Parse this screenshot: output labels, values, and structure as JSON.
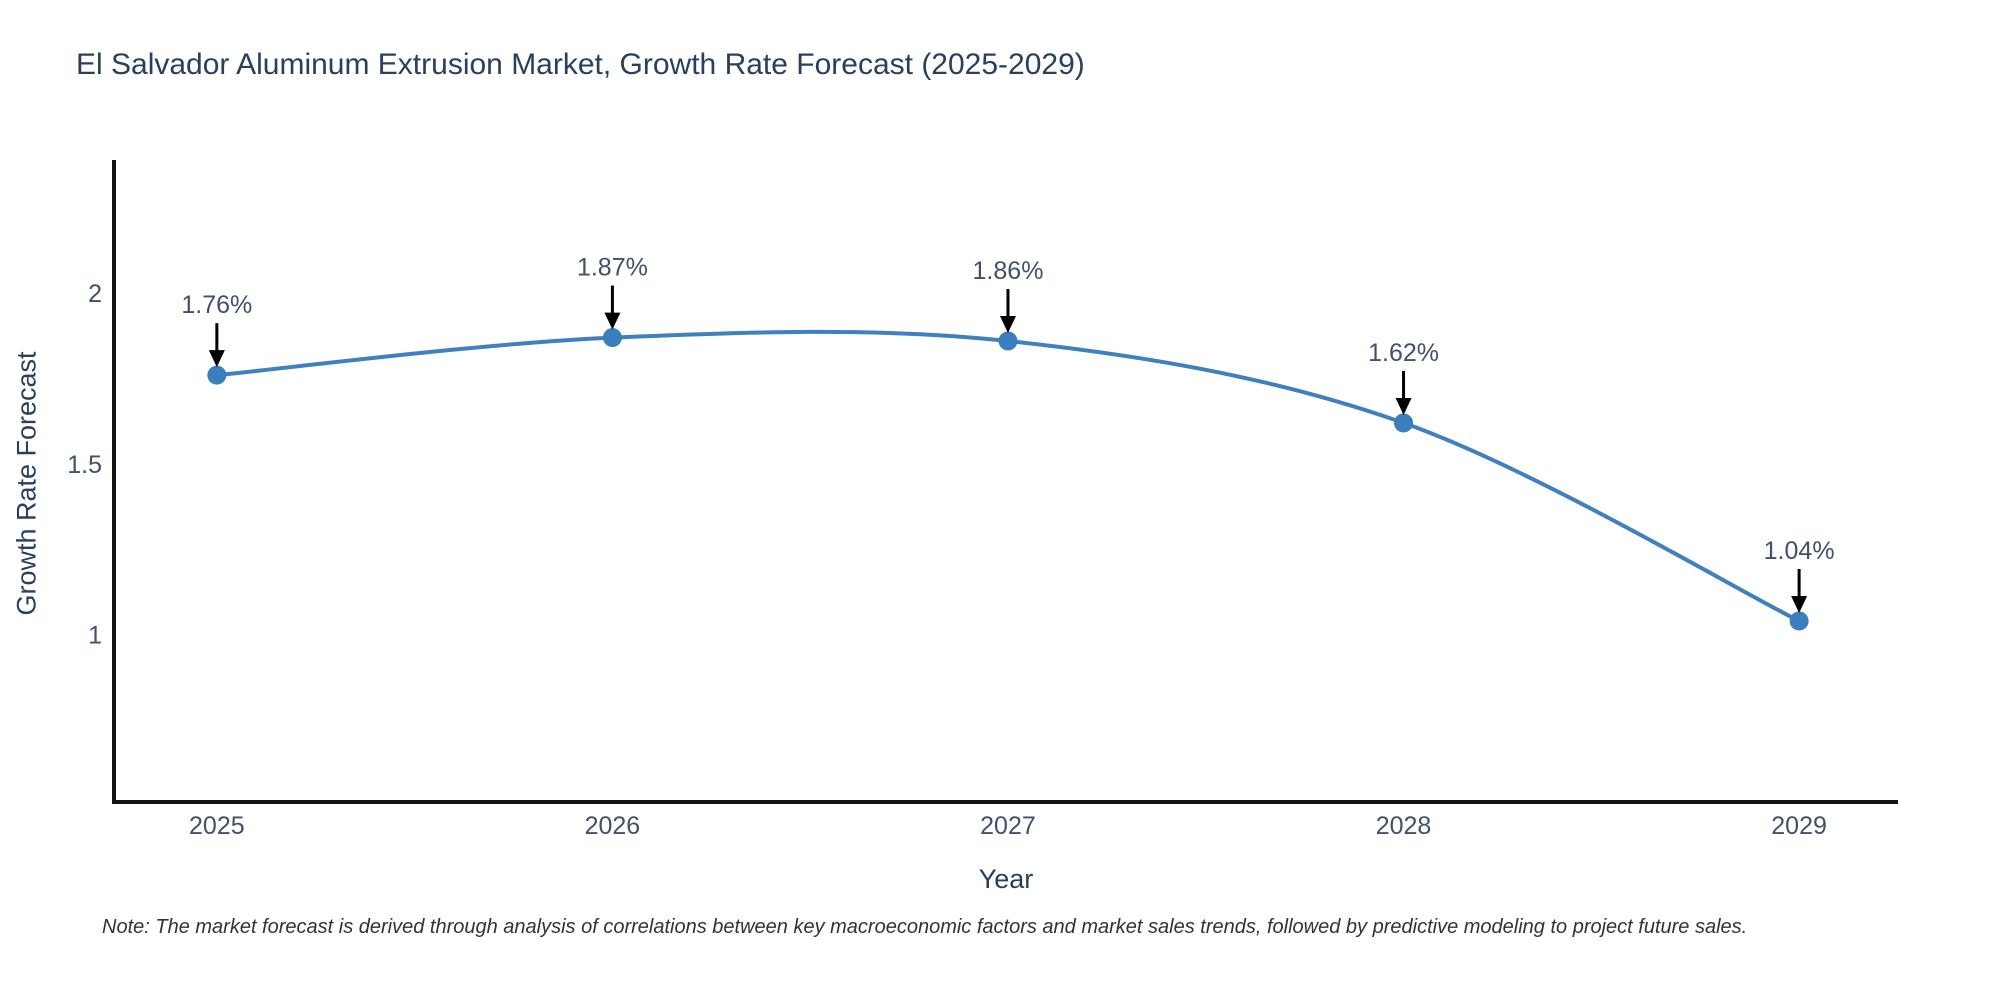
{
  "chart": {
    "title": "El Salvador Aluminum Extrusion Market, Growth Rate Forecast (2025-2029)",
    "xlabel": "Year",
    "ylabel": "Growth Rate Forecast"
  },
  "note": "Note: The market forecast is derived through analysis of correlations between key macroeconomic factors and market sales trends, followed by predictive modeling to project future sales.",
  "chart_data": {
    "type": "line",
    "title": "El Salvador Aluminum Extrusion Market, Growth Rate Forecast (2025-2029)",
    "xlabel": "Year",
    "ylabel": "Growth Rate Forecast",
    "x": [
      2025,
      2026,
      2027,
      2028,
      2029
    ],
    "values": [
      1.76,
      1.87,
      1.86,
      1.62,
      1.04
    ],
    "point_labels": [
      "1.76%",
      "1.87%",
      "1.86%",
      "1.62%",
      "1.04%"
    ],
    "xticks": [
      2025,
      2026,
      2027,
      2028,
      2029
    ],
    "yticks": [
      1,
      1.5,
      2
    ],
    "xlim": [
      2024.74,
      2029.25
    ],
    "ylim": [
      0.51,
      2.39
    ],
    "grid": false,
    "legend": "none",
    "line_shape": "spline",
    "colors": {
      "line": "#4080bf",
      "marker": "#3a7ebd",
      "axis": "#141414",
      "title_text": "#2a3f5f",
      "tick_text": "#42506a",
      "annotation_text": "#42506a",
      "arrow": "#000000",
      "background": "#ffffff"
    }
  }
}
